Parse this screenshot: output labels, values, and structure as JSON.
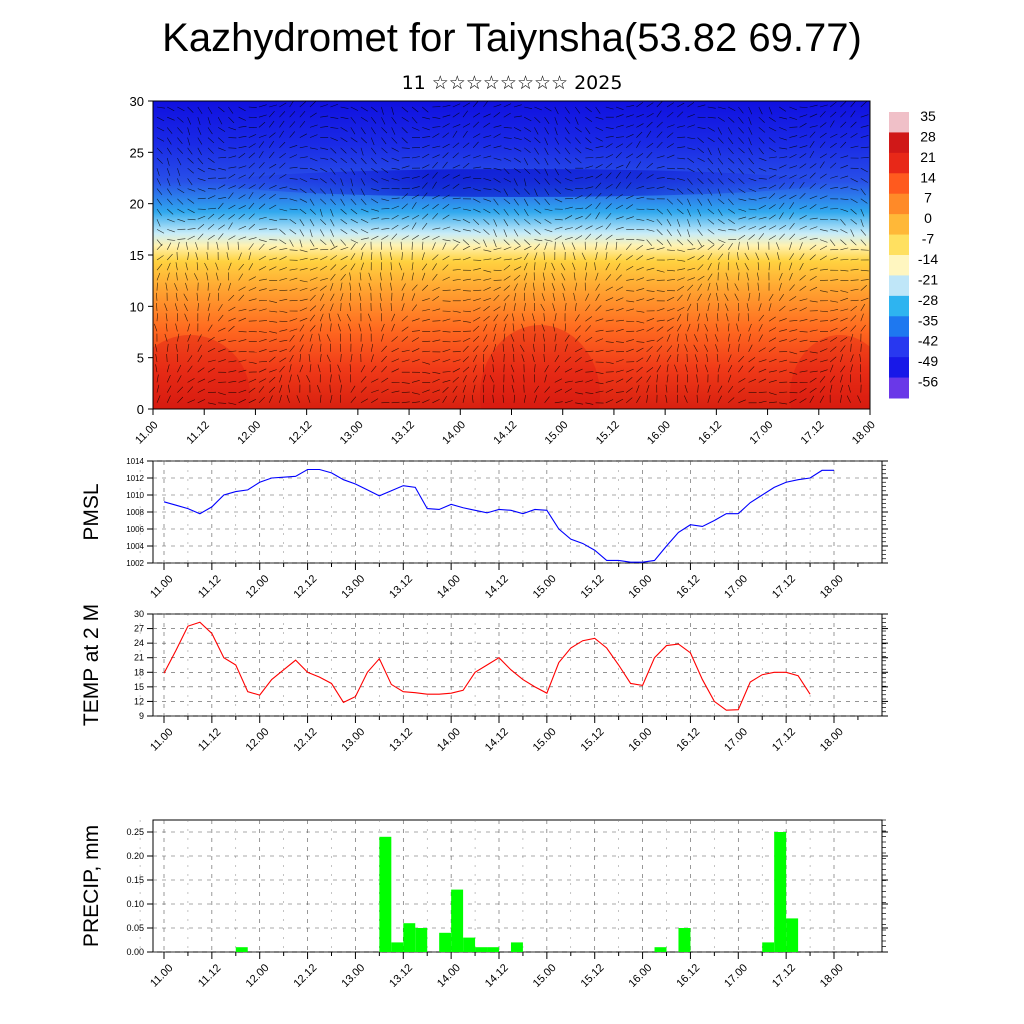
{
  "title": "Kazhydromet for Taiynsha(53.82 69.77)",
  "subtitle": "11 ☆☆☆☆☆☆☆☆ 2025",
  "time_ticks": [
    "11.00",
    "11.12",
    "12.00",
    "12.12",
    "13.00",
    "13.12",
    "14.00",
    "14.12",
    "15.00",
    "15.12",
    "16.00",
    "16.12",
    "17.00",
    "17.12",
    "18.00"
  ],
  "chart_data": [
    {
      "type": "heatmap",
      "description_kind": "temperature cross-section with wind vectors",
      "ylim": [
        0,
        30
      ],
      "y_ticks": [
        0,
        5,
        10,
        15,
        20,
        25,
        30
      ],
      "colorbar": {
        "labels": [
          "35",
          "28",
          "21",
          "14",
          "7",
          "0",
          "-7",
          "-14",
          "-21",
          "-28",
          "-35",
          "-42",
          "-49",
          "-56"
        ],
        "colors": [
          "#f0c0c8",
          "#d01818",
          "#e82818",
          "#ff5a1e",
          "#ff8a28",
          "#ffb838",
          "#ffe060",
          "#fff6c0",
          "#bfe6f8",
          "#2eb4f0",
          "#1e78f0",
          "#2838f0",
          "#1818e8",
          "#6a38e8"
        ]
      }
    },
    {
      "type": "line",
      "ylabel": "PMSL",
      "ylim": [
        1002,
        1014
      ],
      "y_ticks": [
        1002,
        1004,
        1006,
        1008,
        1010,
        1012,
        1014
      ],
      "color": "#0000ff",
      "x": [
        0,
        3,
        6,
        9,
        12,
        15,
        18,
        21,
        24,
        27,
        30,
        33,
        36,
        39,
        42,
        45,
        48,
        51,
        54,
        57,
        60,
        63,
        66,
        69,
        72,
        75,
        78,
        81,
        84,
        87,
        90,
        93,
        96,
        99,
        102,
        105,
        108,
        111,
        114,
        117,
        120,
        123,
        126,
        129,
        132,
        135,
        138,
        141,
        144,
        147,
        150,
        153,
        156,
        159,
        162,
        165,
        168
      ],
      "y": [
        1009.2,
        1008.8,
        1008.4,
        1007.8,
        1008.6,
        1010.0,
        1010.4,
        1010.6,
        1011.5,
        1012.0,
        1012.1,
        1012.2,
        1013.0,
        1013.0,
        1012.6,
        1011.8,
        1011.3,
        1010.6,
        1009.9,
        1010.5,
        1011.1,
        1010.9,
        1008.4,
        1008.3,
        1008.9,
        1008.5,
        1008.2,
        1007.9,
        1008.3,
        1008.2,
        1007.8,
        1008.3,
        1008.2,
        1006.0,
        1004.8,
        1004.3,
        1003.5,
        1002.3,
        1002.3,
        1002.1,
        1002.1,
        1002.3,
        1004.0,
        1005.6,
        1006.5,
        1006.3,
        1007.0,
        1007.8,
        1007.8,
        1009.1,
        1010.0,
        1010.9,
        1011.5,
        1011.8,
        1012.0,
        1012.9,
        1012.9
      ]
    },
    {
      "type": "line",
      "ylabel": "TEMP at 2 M",
      "ylim": [
        9,
        30
      ],
      "y_ticks": [
        9,
        12,
        15,
        18,
        21,
        24,
        27,
        30
      ],
      "color": "#ff0000",
      "x": [
        0,
        3,
        6,
        9,
        12,
        15,
        18,
        21,
        24,
        27,
        30,
        33,
        36,
        39,
        42,
        45,
        48,
        51,
        54,
        57,
        60,
        63,
        66,
        69,
        72,
        75,
        78,
        81,
        84,
        87,
        90,
        93,
        96,
        99,
        102,
        105,
        108,
        111,
        114,
        117,
        120,
        123,
        126,
        129,
        132,
        135,
        138,
        141,
        144,
        147,
        150,
        153,
        156,
        159,
        162
      ],
      "y": [
        17.8,
        22.5,
        27.5,
        28.3,
        26.0,
        21.0,
        19.5,
        14.0,
        13.3,
        16.5,
        18.5,
        20.5,
        18.0,
        17.0,
        15.7,
        11.8,
        13.0,
        18.0,
        20.8,
        15.5,
        14.0,
        13.8,
        13.5,
        13.5,
        13.7,
        14.3,
        18.0,
        19.5,
        21.0,
        18.5,
        16.5,
        15.0,
        13.7,
        20.0,
        23.0,
        24.5,
        25.0,
        23.0,
        19.5,
        15.7,
        15.3,
        21.0,
        23.5,
        23.8,
        22.0,
        16.5,
        12.0,
        10.2,
        10.3,
        16.0,
        17.5,
        18.0,
        18.0,
        17.3,
        13.5
      ]
    },
    {
      "type": "bar",
      "ylabel": "PRECIP, mm",
      "ylim": [
        0,
        0.275
      ],
      "y_ticks": [
        "0.00",
        "0.05",
        "0.10",
        "0.15",
        "0.20",
        "0.25"
      ],
      "color": "#00ff00",
      "x": [
        18,
        54,
        57,
        60,
        63,
        69,
        72,
        75,
        78,
        81,
        87,
        123,
        129,
        150,
        153,
        156
      ],
      "values": [
        0.01,
        0.24,
        0.02,
        0.06,
        0.05,
        0.04,
        0.13,
        0.03,
        0.01,
        0.01,
        0.02,
        0.01,
        0.05,
        0.02,
        0.25,
        0.07
      ]
    }
  ]
}
